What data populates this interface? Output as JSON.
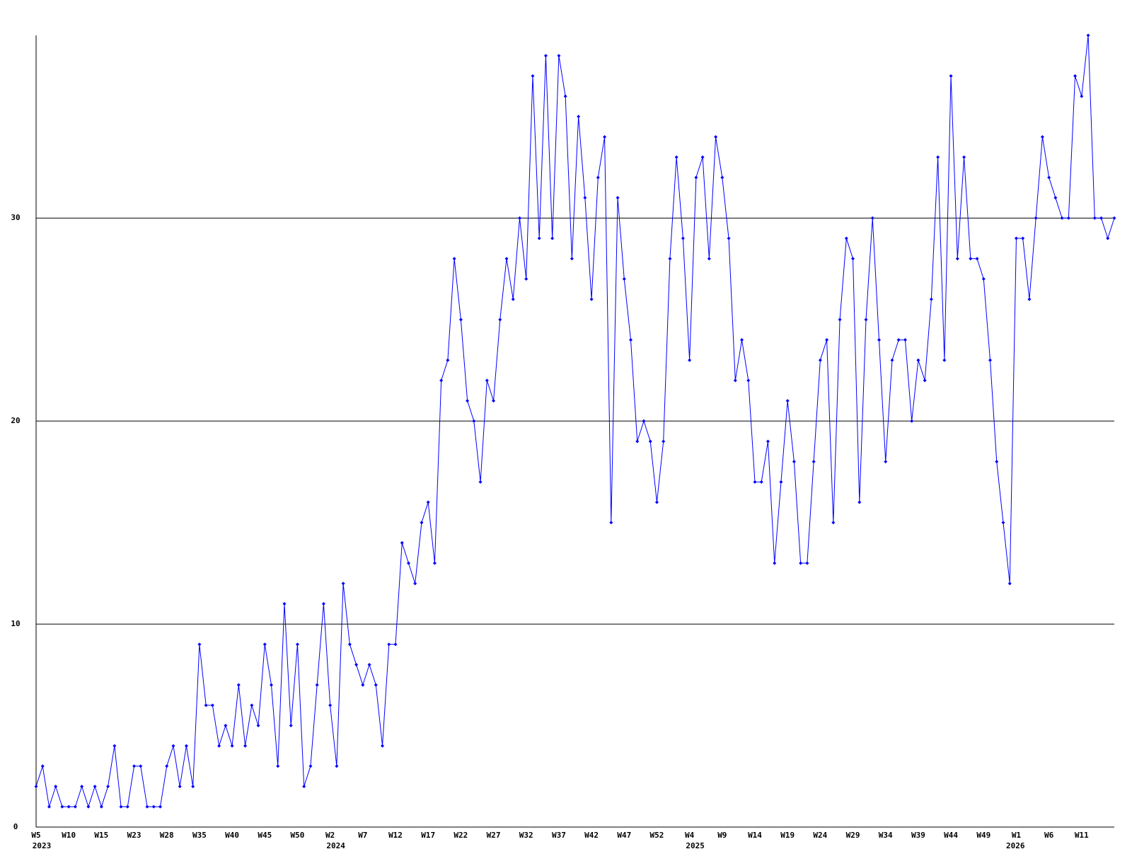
{
  "chart_data": {
    "type": "line",
    "categories": [
      "W5",
      null,
      null,
      null,
      null,
      "W10",
      null,
      null,
      null,
      null,
      "W15",
      null,
      null,
      null,
      null,
      "W23",
      null,
      null,
      null,
      null,
      "W28",
      null,
      null,
      null,
      null,
      "W35",
      null,
      null,
      null,
      null,
      "W40",
      null,
      null,
      null,
      null,
      "W45",
      null,
      null,
      null,
      null,
      "W50",
      null,
      null,
      null,
      null,
      "W2",
      null,
      null,
      null,
      null,
      "W7",
      null,
      null,
      null,
      null,
      "W12",
      null,
      null,
      null,
      null,
      "W17",
      null,
      null,
      null,
      null,
      "W22",
      null,
      null,
      null,
      null,
      "W27",
      null,
      null,
      null,
      null,
      "W32",
      null,
      null,
      null,
      null,
      "W37",
      null,
      null,
      null,
      null,
      "W42",
      null,
      null,
      null,
      null,
      "W47",
      null,
      null,
      null,
      null,
      "W52",
      null,
      null,
      null,
      null,
      "W4",
      null,
      null,
      null,
      null,
      "W9",
      null,
      null,
      null,
      null,
      "W14",
      null,
      null,
      null,
      null,
      "W19",
      null,
      null,
      null,
      null,
      "W24",
      null,
      null,
      null,
      null,
      "W29",
      null,
      null,
      null,
      null,
      "W34",
      null,
      null,
      null,
      null,
      "W39",
      null,
      null,
      null,
      null,
      "W44",
      null,
      null,
      null,
      null,
      "W49",
      null,
      null,
      null,
      null,
      "W1",
      null,
      null,
      null,
      null,
      "W6",
      null,
      null,
      null,
      null,
      "W11",
      null,
      null,
      null,
      null,
      null
    ],
    "years": [
      "2023",
      null,
      null,
      null,
      null,
      null,
      null,
      null,
      null,
      null,
      null,
      null,
      null,
      null,
      null,
      null,
      null,
      null,
      null,
      null,
      null,
      null,
      null,
      null,
      null,
      null,
      null,
      null,
      null,
      null,
      null,
      null,
      null,
      null,
      null,
      null,
      null,
      null,
      null,
      null,
      null,
      null,
      null,
      null,
      null,
      "2024",
      null,
      null,
      null,
      null,
      null,
      null,
      null,
      null,
      null,
      null,
      null,
      null,
      null,
      null,
      null,
      null,
      null,
      null,
      null,
      null,
      null,
      null,
      null,
      null,
      null,
      null,
      null,
      null,
      null,
      null,
      null,
      null,
      null,
      null,
      null,
      null,
      null,
      null,
      null,
      null,
      null,
      null,
      null,
      null,
      null,
      null,
      null,
      null,
      null,
      null,
      null,
      null,
      null,
      null,
      "2025",
      null,
      null,
      null,
      null,
      null,
      null,
      null,
      null,
      null,
      null,
      null,
      null,
      null,
      null,
      null,
      null,
      null,
      null,
      null,
      null,
      null,
      null,
      null,
      null,
      null,
      null,
      null,
      null,
      null,
      null,
      null,
      null,
      null,
      null,
      null,
      null,
      null,
      null,
      null,
      null,
      null,
      null,
      null,
      null,
      null,
      null,
      null,
      null,
      "2026",
      null,
      null,
      null,
      null,
      null,
      null,
      null,
      null,
      null,
      null,
      null,
      null,
      null,
      null,
      null
    ],
    "series": [
      {
        "color": "#0000ff",
        "values": [
          2,
          3,
          1,
          2,
          1,
          1,
          1,
          2,
          1,
          2,
          1,
          2,
          4,
          1,
          1,
          3,
          3,
          1,
          1,
          1,
          3,
          4,
          2,
          4,
          2,
          9,
          6,
          6,
          4,
          5,
          4,
          7,
          4,
          6,
          5,
          9,
          7,
          3,
          11,
          5,
          9,
          2,
          3,
          7,
          11,
          6,
          3,
          12,
          9,
          8,
          7,
          8,
          7,
          4,
          9,
          9,
          14,
          13,
          12,
          15,
          16,
          13,
          22,
          23,
          28,
          25,
          21,
          20,
          17,
          22,
          21,
          25,
          28,
          26,
          30,
          27,
          37,
          29,
          38,
          29,
          38,
          36,
          28,
          35,
          31,
          26,
          32,
          34,
          15,
          31,
          27,
          24,
          19,
          20,
          19,
          16,
          19,
          28,
          33,
          29,
          23,
          32,
          33,
          28,
          34,
          32,
          29,
          22,
          24,
          22,
          17,
          17,
          19,
          13,
          17,
          21,
          18,
          13,
          13,
          18,
          23,
          24,
          15,
          25,
          29,
          28,
          16,
          25,
          30,
          24,
          18,
          23,
          24,
          24,
          20,
          23,
          22,
          26,
          33,
          23,
          37,
          28,
          33,
          28,
          28,
          27,
          23,
          18,
          15,
          12,
          29,
          29,
          26,
          30,
          34,
          32,
          31,
          30,
          30,
          37,
          36,
          39,
          30,
          30,
          29,
          30
        ]
      }
    ],
    "ylim": [
      0,
      39
    ],
    "yticks": [
      0,
      10,
      20,
      30
    ],
    "grid": true
  }
}
